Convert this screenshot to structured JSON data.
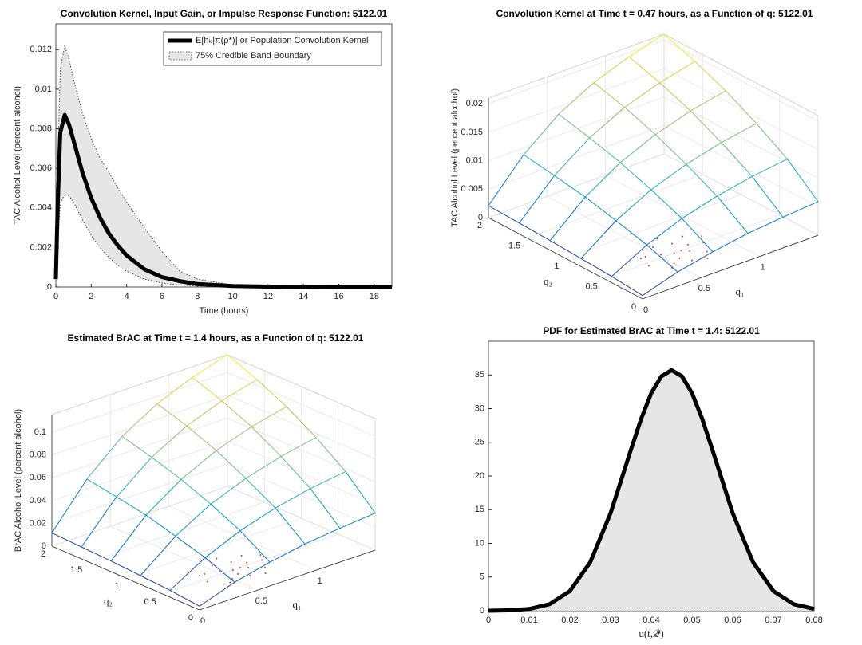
{
  "chart_data": [
    {
      "type": "line",
      "title": "Convolution Kernel, Input Gain, or Impulse Response Function: 5122.01",
      "xlabel": "Time (hours)",
      "ylabel": "TAC Alcohol Level (percent alcohol)",
      "x": [
        0,
        0.1,
        0.25,
        0.5,
        0.75,
        1,
        1.5,
        2,
        2.5,
        3,
        3.5,
        4,
        5,
        6,
        7,
        8,
        10,
        12,
        14,
        16,
        19
      ],
      "series": [
        {
          "name": "E[hₖ|π(ρ*)] or Population Convolution Kernel",
          "color": "#000000",
          "values": [
            0.0004,
            0.004,
            0.0078,
            0.0087,
            0.0082,
            0.0074,
            0.0058,
            0.0045,
            0.0035,
            0.0027,
            0.0021,
            0.0016,
            0.0009,
            0.0005,
            0.0003,
            0.00015,
            5e-05,
            2e-05,
            1e-05,
            0,
            0
          ]
        },
        {
          "name": "75% Credible Band Boundary",
          "color": "#333333",
          "values": [
            0.0006,
            0.006,
            0.011,
            0.0122,
            0.0115,
            0.0105,
            0.0088,
            0.0075,
            0.0065,
            0.0058,
            0.005,
            0.0043,
            0.003,
            0.0018,
            0.0008,
            0.0004,
            0.0001,
            3e-05,
            1e-05,
            0,
            0
          ]
        },
        {
          "color": "#333333",
          "values": [
            0.0003,
            0.002,
            0.0042,
            0.0047,
            0.0046,
            0.0043,
            0.0034,
            0.0026,
            0.002,
            0.0015,
            0.0011,
            0.0008,
            0.0004,
            0.0002,
            0.0001,
            5e-05,
            1e-05,
            0,
            0,
            0,
            0
          ]
        }
      ],
      "band_color": "#e6e6e6",
      "xlim": [
        0,
        19
      ],
      "xticks": [
        0,
        2,
        4,
        6,
        8,
        10,
        12,
        14,
        16,
        18
      ],
      "ylim": [
        0,
        0.0133
      ],
      "yticks": [
        0,
        0.002,
        0.004,
        0.006,
        0.008,
        0.01,
        0.012
      ]
    },
    {
      "type": "surface",
      "title": "Convolution Kernel at Time t = 0.47 hours, as a Function of q: 5122.01",
      "xlabel": "q₁",
      "ylabel": "q₂",
      "zlabel": "TAC Alcohol Level (percent alcohol)",
      "x": [
        0,
        0.3,
        0.6,
        0.9,
        1.2,
        1.5
      ],
      "y": [
        0,
        0.4,
        0.8,
        1.2,
        1.6,
        2
      ],
      "z": [
        [
          0.0006,
          0.0025,
          0.0038,
          0.0048,
          0.0054,
          0.0059
        ],
        [
          0.0011,
          0.0044,
          0.0068,
          0.0085,
          0.0097,
          0.0105
        ],
        [
          0.0014,
          0.0058,
          0.009,
          0.0112,
          0.0128,
          0.0139
        ],
        [
          0.0017,
          0.0071,
          0.0109,
          0.0136,
          0.0155,
          0.0168
        ],
        [
          0.0019,
          0.008,
          0.0124,
          0.0155,
          0.0176,
          0.0191
        ],
        [
          0.0021,
          0.0088,
          0.0137,
          0.017,
          0.0193,
          0.021
        ]
      ],
      "xlim": [
        0,
        1.5
      ],
      "xticks": [
        0,
        0.5,
        1
      ],
      "ylim": [
        0,
        2
      ],
      "yticks": [
        0,
        0.5,
        1,
        1.5,
        2
      ],
      "zlim": [
        0,
        0.021
      ],
      "zticks": [
        0,
        0.005,
        0.01,
        0.015,
        0.02
      ],
      "samples": {
        "color": "#e03030",
        "q1": [
          0.35,
          0.42,
          0.5,
          0.55,
          0.6,
          0.62,
          0.68,
          0.7,
          0.75,
          0.78,
          0.8,
          0.85,
          0.45,
          0.52,
          0.65,
          0.72,
          0.58,
          0.9,
          0.38,
          0.66
        ],
        "q2": [
          0.45,
          0.6,
          0.35,
          0.7,
          0.5,
          0.3,
          0.65,
          0.45,
          0.55,
          0.35,
          0.7,
          0.5,
          0.3,
          0.55,
          0.8,
          0.25,
          0.4,
          0.6,
          0.6,
          0.5
        ]
      }
    },
    {
      "type": "surface",
      "title": "Estimated BrAC at Time t = 1.4 hours, as a Function of q: 5122.01",
      "xlabel": "q₁",
      "ylabel": "q₂",
      "zlabel": "BrAC Alcohol Level (percent alcohol)",
      "x": [
        0,
        0.3,
        0.6,
        0.9,
        1.2,
        1.5
      ],
      "y": [
        0,
        0.4,
        0.8,
        1.2,
        1.6,
        2
      ],
      "z": [
        [
          0.0033,
          0.0138,
          0.0209,
          0.0264,
          0.0297,
          0.0325
        ],
        [
          0.006,
          0.0242,
          0.0374,
          0.0468,
          0.0534,
          0.0578
        ],
        [
          0.0077,
          0.0319,
          0.0495,
          0.0616,
          0.0704,
          0.0765
        ],
        [
          0.0094,
          0.0391,
          0.06,
          0.0748,
          0.0853,
          0.0924
        ],
        [
          0.0105,
          0.044,
          0.0682,
          0.0853,
          0.0968,
          0.105
        ],
        [
          0.0116,
          0.0484,
          0.0754,
          0.0935,
          0.1062,
          0.1155
        ]
      ],
      "xlim": [
        0,
        1.5
      ],
      "xticks": [
        0,
        0.5,
        1
      ],
      "ylim": [
        0,
        2
      ],
      "yticks": [
        0,
        0.5,
        1,
        1.5,
        2
      ],
      "zlim": [
        0,
        0.1155
      ],
      "zticks": [
        0,
        0.02,
        0.04,
        0.06,
        0.08,
        0.1
      ],
      "samples": {
        "color": "#e03030",
        "q1": [
          0.35,
          0.42,
          0.5,
          0.55,
          0.6,
          0.62,
          0.68,
          0.7,
          0.75,
          0.78,
          0.8,
          0.85,
          0.45,
          0.52,
          0.65,
          0.72,
          0.58,
          0.9,
          0.38,
          0.66
        ],
        "q2": [
          0.45,
          0.6,
          0.35,
          0.7,
          0.5,
          0.3,
          0.65,
          0.45,
          0.55,
          0.35,
          0.7,
          0.5,
          0.3,
          0.55,
          0.8,
          0.25,
          0.4,
          0.6,
          0.6,
          0.5
        ]
      }
    },
    {
      "type": "area",
      "title": "PDF for Estimated BrAC at Time t = 1.4: 5122.01",
      "xlabel": "u(t,𝒬)",
      "x": [
        0,
        0.005,
        0.01,
        0.015,
        0.02,
        0.025,
        0.03,
        0.035,
        0.0375,
        0.04,
        0.0425,
        0.045,
        0.0475,
        0.05,
        0.0525,
        0.055,
        0.06,
        0.065,
        0.07,
        0.075,
        0.08
      ],
      "values": [
        0,
        0.06,
        0.26,
        0.97,
        2.92,
        7.19,
        14.49,
        23.91,
        28.49,
        32.3,
        34.82,
        35.7,
        34.82,
        32.3,
        28.49,
        23.91,
        14.49,
        7.19,
        2.92,
        0.97,
        0.26
      ],
      "color": "#000000",
      "fill": "#e6e6e6",
      "xlim": [
        0,
        0.08
      ],
      "xticks": [
        0,
        0.01,
        0.02,
        0.03,
        0.04,
        0.05,
        0.06,
        0.07,
        0.08
      ],
      "ylim": [
        0,
        40
      ],
      "yticks": [
        0,
        5,
        10,
        15,
        20,
        25,
        30,
        35
      ]
    }
  ]
}
